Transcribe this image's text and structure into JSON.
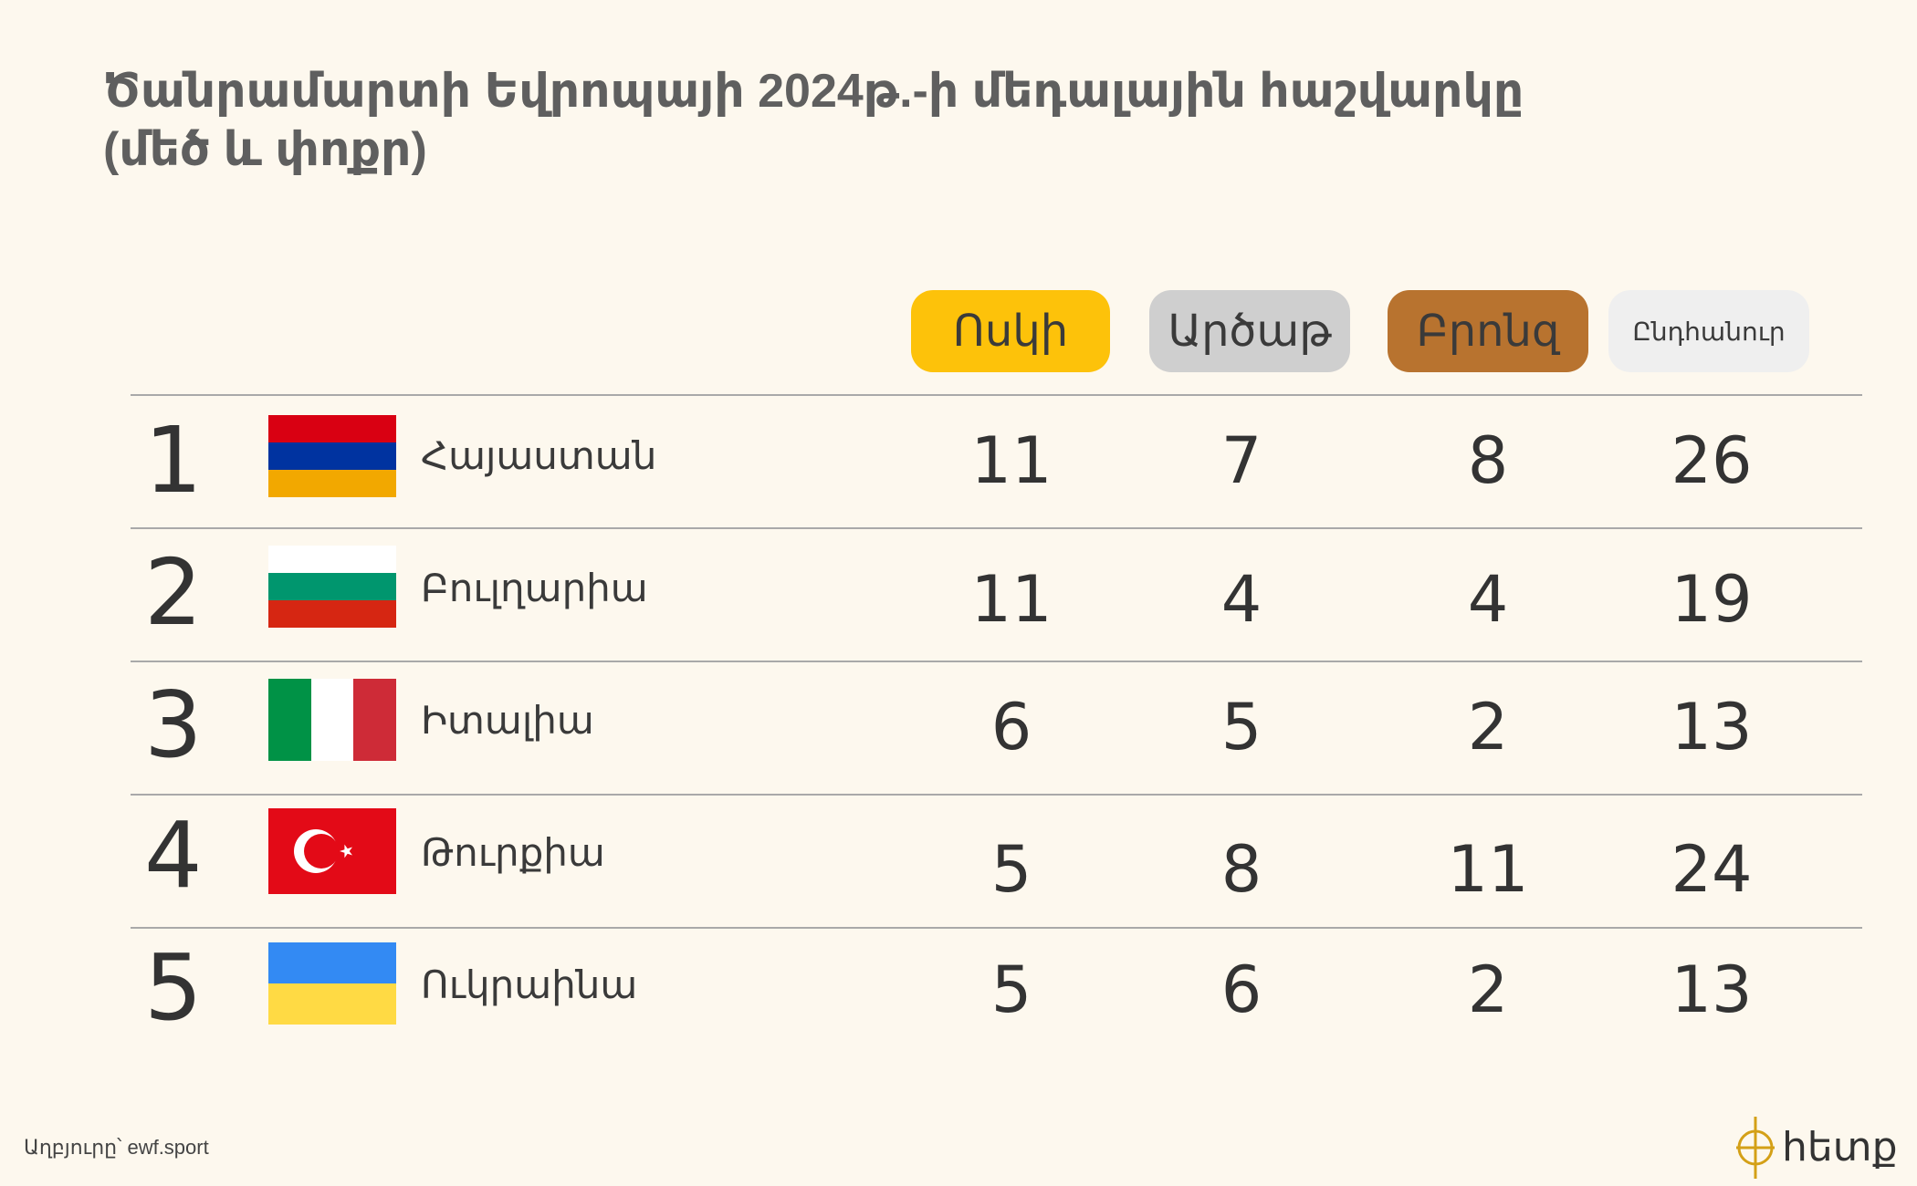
{
  "title_lines": [
    "Ծանրամարտի Եվրոպայի 2024թ.-ի մեդալային հաշվարկը",
    "(մեծ և փոքր)"
  ],
  "headers": {
    "gold": "Ոսկի",
    "silver": "Արծաթ",
    "bronze": "Բրոնզ",
    "total": "Ընդհանուր"
  },
  "colors": {
    "background": "#fdf8ee",
    "gold_pill": "#fdc20a",
    "silver_pill": "#cfcfcf",
    "bronze_pill": "#b8732f",
    "total_pill": "#efefef",
    "divider": "#a9a9a9"
  },
  "rows": [
    {
      "rank": "1",
      "country": "Հայաստան",
      "flag": "armenia-flag-icon",
      "gold": "11",
      "silver": "7",
      "bronze": "8",
      "total": "26"
    },
    {
      "rank": "2",
      "country": "Բուլղարիա",
      "flag": "bulgaria-flag-icon",
      "gold": "11",
      "silver": "4",
      "bronze": "4",
      "total": "19"
    },
    {
      "rank": "3",
      "country": "Իտալիա",
      "flag": "italy-flag-icon",
      "gold": "6",
      "silver": "5",
      "bronze": "2",
      "total": "13"
    },
    {
      "rank": "4",
      "country": "Թուրքիա",
      "flag": "turkey-flag-icon",
      "gold": "5",
      "silver": "8",
      "bronze": "11",
      "total": "24"
    },
    {
      "rank": "5",
      "country": "Ուկրաինա",
      "flag": "ukraine-flag-icon",
      "gold": "5",
      "silver": "6",
      "bronze": "2",
      "total": "13"
    }
  ],
  "chart_data": {
    "type": "table",
    "title": "Ծանրամարտի Եվրոպայի 2024թ.-ի մեդալային հաշվարկը (մեծ և փոքր)",
    "columns": [
      "Ոսկի",
      "Արծաթ",
      "Բրոնզ",
      "Ընդհանուր"
    ],
    "rows": [
      {
        "rank": 1,
        "country": "Հայաստան",
        "values": [
          11,
          7,
          8,
          26
        ]
      },
      {
        "rank": 2,
        "country": "Բուլղարիա",
        "values": [
          11,
          4,
          4,
          19
        ]
      },
      {
        "rank": 3,
        "country": "Իտալիա",
        "values": [
          6,
          5,
          2,
          13
        ]
      },
      {
        "rank": 4,
        "country": "Թուրքիա",
        "values": [
          5,
          8,
          11,
          24
        ]
      },
      {
        "rank": 5,
        "country": "Ուկրաինա",
        "values": [
          5,
          6,
          2,
          13
        ]
      }
    ]
  },
  "source": "Աղբյուրը՝ ewf.sport",
  "logo": {
    "text": "հետք",
    "icon": "hetq-logo-icon"
  }
}
